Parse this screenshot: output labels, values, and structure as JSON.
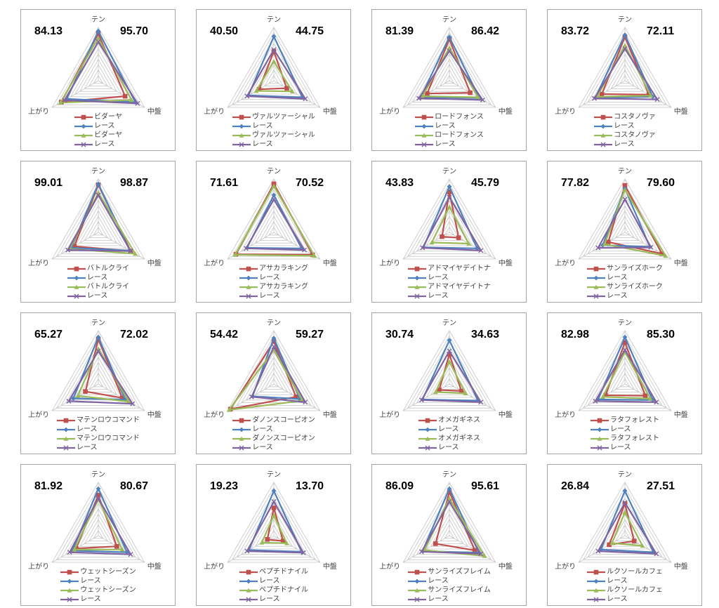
{
  "axes": [
    "テン",
    "中盤",
    "上がり"
  ],
  "radar_style": {
    "colors": [
      "#C0504D",
      "#4F81BD",
      "#9BBB59",
      "#8064A2"
    ],
    "markers": [
      "square",
      "diamond",
      "triangle",
      "x"
    ],
    "grid_color": "#c6c6c6",
    "grid_levels": 10,
    "max": 100,
    "cell_border_color": "#a6a6a6"
  },
  "chart_data": [
    {
      "type": "radar",
      "left_value": "84.13",
      "right_value": "95.70",
      "axes": [
        "テン",
        "中盤",
        "上がり"
      ],
      "series": [
        {
          "name": "ビダーヤ",
          "values": [
            88,
            58,
            80
          ]
        },
        {
          "name": "レース",
          "values": [
            93,
            80,
            68
          ]
        },
        {
          "name": "ビダーヤ",
          "values": [
            80,
            72,
            82
          ]
        },
        {
          "name": "レース",
          "values": [
            73,
            85,
            73
          ]
        }
      ]
    },
    {
      "type": "radar",
      "left_value": "40.50",
      "right_value": "44.75",
      "axes": [
        "テン",
        "中盤",
        "上がり"
      ],
      "series": [
        {
          "name": "ヴァルツァーシャル",
          "values": [
            55,
            28,
            32
          ]
        },
        {
          "name": "レース",
          "values": [
            83,
            62,
            55
          ]
        },
        {
          "name": "ヴァルツァーシャル",
          "values": [
            36,
            40,
            38
          ]
        },
        {
          "name": "レース",
          "values": [
            58,
            68,
            58
          ]
        }
      ]
    },
    {
      "type": "radar",
      "left_value": "81.39",
      "right_value": "86.42",
      "axes": [
        "テン",
        "中盤",
        "上がり"
      ],
      "series": [
        {
          "name": "ロードフォンス",
          "values": [
            78,
            45,
            48
          ]
        },
        {
          "name": "レース",
          "values": [
            82,
            65,
            62
          ]
        },
        {
          "name": "ロードフォンス",
          "values": [
            62,
            62,
            58
          ]
        },
        {
          "name": "レース",
          "values": [
            56,
            72,
            66
          ]
        }
      ]
    },
    {
      "type": "radar",
      "left_value": "83.72",
      "right_value": "72.11",
      "axes": [
        "テン",
        "中盤",
        "上がり"
      ],
      "series": [
        {
          "name": "コスタノヴァ",
          "values": [
            82,
            52,
            50
          ]
        },
        {
          "name": "レース",
          "values": [
            86,
            60,
            64
          ]
        },
        {
          "name": "コスタノヴァ",
          "values": [
            66,
            56,
            60
          ]
        },
        {
          "name": "レース",
          "values": [
            60,
            70,
            66
          ]
        }
      ]
    },
    {
      "type": "radar",
      "left_value": "99.01",
      "right_value": "98.87",
      "axes": [
        "テン",
        "中盤",
        "上がり"
      ],
      "series": [
        {
          "name": "バトルクライ",
          "values": [
            89,
            70,
            52
          ]
        },
        {
          "name": "レース",
          "values": [
            91,
            68,
            58
          ]
        },
        {
          "name": "バトルクライ",
          "values": [
            74,
            80,
            62
          ]
        },
        {
          "name": "レース",
          "values": [
            70,
            70,
            66
          ]
        }
      ]
    },
    {
      "type": "radar",
      "left_value": "71.61",
      "right_value": "70.52",
      "axes": [
        "テン",
        "中盤",
        "上がり"
      ],
      "series": [
        {
          "name": "アサカラキング",
          "values": [
            91,
            84,
            82
          ]
        },
        {
          "name": "レース",
          "values": [
            70,
            60,
            58
          ]
        },
        {
          "name": "アサカラキング",
          "values": [
            87,
            88,
            84
          ]
        },
        {
          "name": "レース",
          "values": [
            62,
            66,
            60
          ]
        }
      ]
    },
    {
      "type": "radar",
      "left_value": "43.83",
      "right_value": "45.79",
      "axes": [
        "テン",
        "中盤",
        "上がり"
      ],
      "series": [
        {
          "name": "アドマイヤデイトナ",
          "values": [
            76,
            20,
            16
          ]
        },
        {
          "name": "レース",
          "values": [
            86,
            60,
            56
          ]
        },
        {
          "name": "アドマイヤデイトナ",
          "values": [
            48,
            42,
            38
          ]
        },
        {
          "name": "レース",
          "values": [
            66,
            68,
            58
          ]
        }
      ]
    },
    {
      "type": "radar",
      "left_value": "77.82",
      "right_value": "79.60",
      "axes": [
        "テン",
        "中盤",
        "上がり"
      ],
      "series": [
        {
          "name": "サンライズホーク",
          "values": [
            88,
            80,
            36
          ]
        },
        {
          "name": "レース",
          "values": [
            82,
            54,
            48
          ]
        },
        {
          "name": "サンライズホーク",
          "values": [
            80,
            88,
            44
          ]
        },
        {
          "name": "レース",
          "values": [
            62,
            56,
            58
          ]
        }
      ]
    },
    {
      "type": "radar",
      "left_value": "65.27",
      "right_value": "72.02",
      "axes": [
        "テン",
        "中盤",
        "上がり"
      ],
      "series": [
        {
          "name": "マテンロウコマンド",
          "values": [
            84,
            52,
            28
          ]
        },
        {
          "name": "レース",
          "values": [
            88,
            58,
            54
          ]
        },
        {
          "name": "マテンロウコマンド",
          "values": [
            66,
            66,
            44
          ]
        },
        {
          "name": "レース",
          "values": [
            62,
            74,
            64
          ]
        }
      ]
    },
    {
      "type": "radar",
      "left_value": "54.42",
      "right_value": "59.27",
      "axes": [
        "テン",
        "中盤",
        "上がり"
      ],
      "series": [
        {
          "name": "ダノンスコーピオン",
          "values": [
            80,
            48,
            94
          ]
        },
        {
          "name": "レース",
          "values": [
            86,
            56,
            46
          ]
        },
        {
          "name": "ダノンスコーピオン",
          "values": [
            64,
            62,
            97
          ]
        },
        {
          "name": "レース",
          "values": [
            70,
            68,
            48
          ]
        }
      ]
    },
    {
      "type": "radar",
      "left_value": "30.74",
      "right_value": "34.63",
      "axes": [
        "テン",
        "中盤",
        "上がり"
      ],
      "series": [
        {
          "name": "オメガギネス",
          "values": [
            56,
            26,
            22
          ]
        },
        {
          "name": "レース",
          "values": [
            82,
            62,
            58
          ]
        },
        {
          "name": "オメガギネス",
          "values": [
            42,
            35,
            30
          ]
        },
        {
          "name": "レース",
          "values": [
            62,
            68,
            60
          ]
        }
      ]
    },
    {
      "type": "radar",
      "left_value": "82.98",
      "right_value": "85.30",
      "axes": [
        "テン",
        "中盤",
        "上がり"
      ],
      "series": [
        {
          "name": "ラタフォレスト",
          "values": [
            78,
            44,
            42
          ]
        },
        {
          "name": "レース",
          "values": [
            88,
            60,
            58
          ]
        },
        {
          "name": "ラタフォレスト",
          "values": [
            60,
            55,
            48
          ]
        },
        {
          "name": "レース",
          "values": [
            64,
            68,
            64
          ]
        }
      ]
    },
    {
      "type": "radar",
      "left_value": "81.92",
      "right_value": "80.67",
      "axes": [
        "テン",
        "中盤",
        "上がり"
      ],
      "series": [
        {
          "name": "ウェットシーズン",
          "values": [
            76,
            40,
            48
          ]
        },
        {
          "name": "レース",
          "values": [
            88,
            62,
            56
          ]
        },
        {
          "name": "ウェットシーズン",
          "values": [
            68,
            52,
            52
          ]
        },
        {
          "name": "レース",
          "values": [
            70,
            70,
            62
          ]
        }
      ]
    },
    {
      "type": "radar",
      "left_value": "19.23",
      "right_value": "13.70",
      "axes": [
        "テン",
        "中盤",
        "上がり"
      ],
      "series": [
        {
          "name": "ペプチドナイル",
          "values": [
            52,
            20,
            14
          ]
        },
        {
          "name": "レース",
          "values": [
            84,
            60,
            54
          ]
        },
        {
          "name": "ペプチドナイル",
          "values": [
            38,
            28,
            26
          ]
        },
        {
          "name": "レース",
          "values": [
            64,
            64,
            58
          ]
        }
      ]
    },
    {
      "type": "radar",
      "left_value": "86.09",
      "right_value": "95.61",
      "axes": [
        "テン",
        "中盤",
        "上がり"
      ],
      "series": [
        {
          "name": "サンライズフレイム",
          "values": [
            82,
            55,
            30
          ]
        },
        {
          "name": "レース",
          "values": [
            88,
            64,
            58
          ]
        },
        {
          "name": "サンライズフレイム",
          "values": [
            70,
            76,
            54
          ]
        },
        {
          "name": "レース",
          "values": [
            64,
            68,
            60
          ]
        }
      ]
    },
    {
      "type": "radar",
      "left_value": "26.84",
      "right_value": "27.51",
      "axes": [
        "テン",
        "中盤",
        "上がり"
      ],
      "series": [
        {
          "name": "ルクソールカフェ",
          "values": [
            60,
            20,
            34
          ]
        },
        {
          "name": "レース",
          "values": [
            84,
            62,
            52
          ]
        },
        {
          "name": "ルクソールカフェ",
          "values": [
            44,
            38,
            28
          ]
        },
        {
          "name": "レース",
          "values": [
            62,
            68,
            58
          ]
        }
      ]
    }
  ]
}
